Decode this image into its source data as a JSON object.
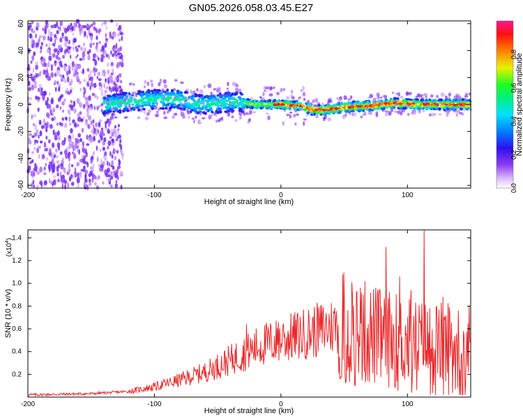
{
  "title": "GN05.2026.058.03.45.E27",
  "chart_data": [
    {
      "type": "heatmap",
      "xlabel": "Height of straight line (km)",
      "ylabel": "Frequency (Hz)",
      "xlim": [
        -200,
        150
      ],
      "ylim": [
        -62,
        62
      ],
      "xticks": [
        -200,
        -100,
        0,
        100
      ],
      "yticks": [
        -60,
        -40,
        -20,
        0,
        20,
        40,
        60
      ],
      "ridge": [
        {
          "x": -140,
          "y": 0
        },
        {
          "x": -120,
          "y": 2
        },
        {
          "x": -100,
          "y": 4
        },
        {
          "x": -80,
          "y": 4
        },
        {
          "x": -65,
          "y": 0
        },
        {
          "x": -50,
          "y": 1
        },
        {
          "x": -35,
          "y": 2
        },
        {
          "x": -20,
          "y": 0
        },
        {
          "x": 0,
          "y": 0
        },
        {
          "x": 15,
          "y": -1
        },
        {
          "x": 25,
          "y": -4
        },
        {
          "x": 35,
          "y": -4
        },
        {
          "x": 50,
          "y": -2
        },
        {
          "x": 70,
          "y": -1
        },
        {
          "x": 90,
          "y": 1
        },
        {
          "x": 110,
          "y": 0
        },
        {
          "x": 130,
          "y": 0
        },
        {
          "x": 150,
          "y": 0
        }
      ],
      "noise_region": [
        -200,
        -125
      ]
    },
    {
      "type": "colorbar",
      "label": "Normalized spectral amplitude",
      "range": [
        0,
        1
      ],
      "ticks": [
        "0.0",
        "0.2",
        "0.4",
        "0.6",
        "0.8"
      ],
      "tick_values": [
        0.0,
        0.2,
        0.4,
        0.6,
        0.8
      ]
    },
    {
      "type": "line",
      "xlabel": "Height of straight line (km)",
      "ylabel": "SNR (10 * v/v)",
      "yscale_label": "(x10",
      "yscale_exp": "4",
      "xlim": [
        -200,
        150
      ],
      "ylim": [
        0,
        1.47
      ],
      "xticks": [
        -200,
        -100,
        0,
        100
      ],
      "yticks": [
        0.2,
        0.4,
        0.6,
        0.8,
        1.0,
        1.2,
        1.4
      ],
      "color": "#e8282a",
      "envelope": [
        {
          "x": -200,
          "y": 0.02
        },
        {
          "x": -150,
          "y": 0.03
        },
        {
          "x": -120,
          "y": 0.05
        },
        {
          "x": -100,
          "y": 0.09
        },
        {
          "x": -80,
          "y": 0.15
        },
        {
          "x": -60,
          "y": 0.22
        },
        {
          "x": -45,
          "y": 0.3
        },
        {
          "x": -30,
          "y": 0.38
        },
        {
          "x": -15,
          "y": 0.46
        },
        {
          "x": 0,
          "y": 0.5
        },
        {
          "x": 20,
          "y": 0.56
        },
        {
          "x": 40,
          "y": 0.62
        },
        {
          "x": 45,
          "y": 0.64
        },
        {
          "x": 60,
          "y": 0.58
        },
        {
          "x": 80,
          "y": 0.52
        },
        {
          "x": 100,
          "y": 0.48
        },
        {
          "x": 120,
          "y": 0.46
        },
        {
          "x": 150,
          "y": 0.45
        }
      ],
      "peaks": [
        {
          "x": 56,
          "y": 1.01
        },
        {
          "x": 83,
          "y": 1.32
        },
        {
          "x": 94,
          "y": 1.06
        },
        {
          "x": 113,
          "y": 1.47
        },
        {
          "x": 103,
          "y": 0.94
        },
        {
          "x": 128,
          "y": 0.88
        },
        {
          "x": 65,
          "y": 0.9
        },
        {
          "x": 140,
          "y": 0.76
        },
        {
          "x": -27,
          "y": 0.64
        },
        {
          "x": 2,
          "y": 0.64
        },
        {
          "x": -2,
          "y": 0.66
        }
      ]
    }
  ]
}
